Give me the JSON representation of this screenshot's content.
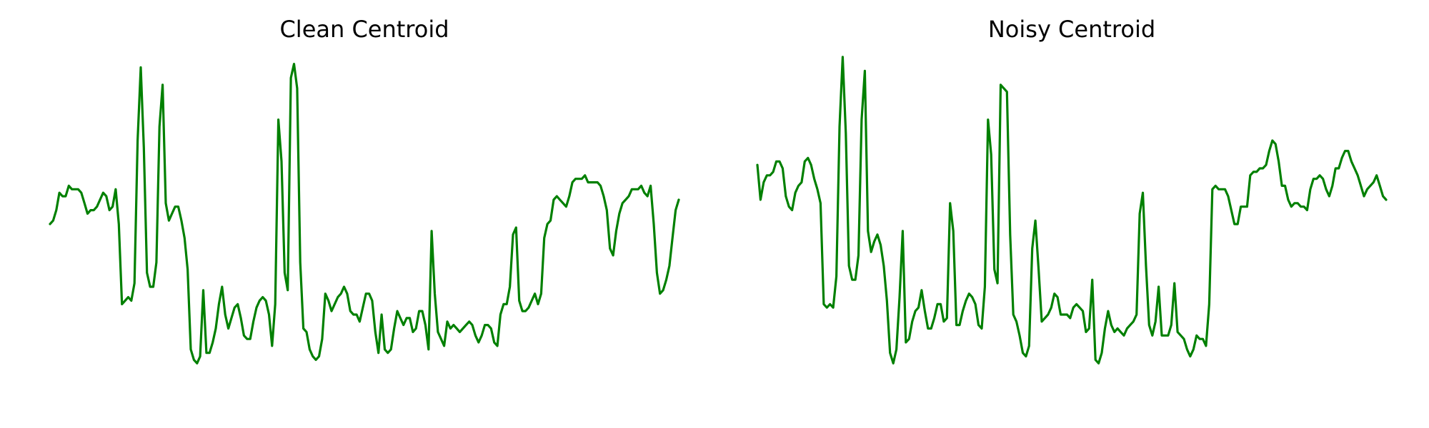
{
  "colors": {
    "line": "#008000",
    "background": "#ffffff"
  },
  "chart_data": [
    {
      "type": "line",
      "title": "Clean Centroid",
      "axes_visible": false,
      "grid": false,
      "ylim": [
        0,
        1
      ],
      "series": [
        {
          "values": [
            0.51,
            0.52,
            0.55,
            0.6,
            0.59,
            0.59,
            0.62,
            0.61,
            0.61,
            0.61,
            0.6,
            0.57,
            0.54,
            0.55,
            0.55,
            0.56,
            0.58,
            0.6,
            0.59,
            0.55,
            0.56,
            0.61,
            0.51,
            0.28,
            0.29,
            0.3,
            0.29,
            0.34,
            0.75,
            0.96,
            0.73,
            0.37,
            0.33,
            0.33,
            0.4,
            0.79,
            0.91,
            0.57,
            0.52,
            0.54,
            0.56,
            0.56,
            0.52,
            0.47,
            0.38,
            0.15,
            0.12,
            0.11,
            0.13,
            0.32,
            0.14,
            0.14,
            0.17,
            0.21,
            0.28,
            0.33,
            0.25,
            0.21,
            0.24,
            0.27,
            0.28,
            0.24,
            0.19,
            0.18,
            0.18,
            0.23,
            0.27,
            0.29,
            0.3,
            0.29,
            0.25,
            0.16,
            0.28,
            0.81,
            0.69,
            0.37,
            0.32,
            0.93,
            0.97,
            0.9,
            0.4,
            0.21,
            0.2,
            0.15,
            0.13,
            0.12,
            0.13,
            0.18,
            0.31,
            0.29,
            0.26,
            0.28,
            0.3,
            0.31,
            0.33,
            0.31,
            0.26,
            0.25,
            0.25,
            0.23,
            0.27,
            0.31,
            0.31,
            0.29,
            0.2,
            0.14,
            0.25,
            0.15,
            0.14,
            0.15,
            0.21,
            0.26,
            0.24,
            0.22,
            0.24,
            0.24,
            0.2,
            0.21,
            0.26,
            0.26,
            0.22,
            0.15,
            0.49,
            0.31,
            0.2,
            0.18,
            0.16,
            0.23,
            0.21,
            0.22,
            0.21,
            0.2,
            0.21,
            0.22,
            0.23,
            0.22,
            0.19,
            0.17,
            0.19,
            0.22,
            0.22,
            0.21,
            0.17,
            0.16,
            0.25,
            0.28,
            0.28,
            0.33,
            0.48,
            0.5,
            0.29,
            0.26,
            0.26,
            0.27,
            0.29,
            0.31,
            0.28,
            0.31,
            0.47,
            0.51,
            0.52,
            0.58,
            0.59,
            0.58,
            0.57,
            0.56,
            0.59,
            0.63,
            0.64,
            0.64,
            0.64,
            0.65,
            0.63,
            0.63,
            0.63,
            0.63,
            0.62,
            0.59,
            0.55,
            0.44,
            0.42,
            0.49,
            0.54,
            0.57,
            0.58,
            0.59,
            0.61,
            0.61,
            0.61,
            0.62,
            0.6,
            0.59,
            0.62,
            0.51,
            0.37,
            0.31,
            0.32,
            0.35,
            0.39,
            0.47,
            0.55,
            0.58
          ]
        }
      ]
    },
    {
      "type": "line",
      "title": "Noisy Centroid",
      "axes_visible": false,
      "grid": false,
      "ylim": [
        0,
        1
      ],
      "series": [
        {
          "values": [
            0.68,
            0.58,
            0.63,
            0.65,
            0.65,
            0.66,
            0.69,
            0.69,
            0.67,
            0.59,
            0.56,
            0.55,
            0.6,
            0.62,
            0.63,
            0.69,
            0.7,
            0.68,
            0.64,
            0.61,
            0.57,
            0.28,
            0.27,
            0.28,
            0.27,
            0.36,
            0.79,
            0.99,
            0.77,
            0.39,
            0.35,
            0.35,
            0.42,
            0.81,
            0.95,
            0.49,
            0.43,
            0.46,
            0.48,
            0.45,
            0.39,
            0.29,
            0.14,
            0.11,
            0.15,
            0.3,
            0.49,
            0.17,
            0.18,
            0.23,
            0.26,
            0.27,
            0.32,
            0.26,
            0.21,
            0.21,
            0.24,
            0.28,
            0.28,
            0.23,
            0.24,
            0.57,
            0.49,
            0.22,
            0.22,
            0.26,
            0.29,
            0.31,
            0.3,
            0.28,
            0.22,
            0.21,
            0.33,
            0.81,
            0.71,
            0.38,
            0.34,
            0.91,
            0.9,
            0.89,
            0.48,
            0.25,
            0.23,
            0.19,
            0.14,
            0.13,
            0.16,
            0.44,
            0.52,
            0.38,
            0.23,
            0.24,
            0.25,
            0.27,
            0.31,
            0.3,
            0.25,
            0.25,
            0.25,
            0.24,
            0.27,
            0.28,
            0.27,
            0.26,
            0.2,
            0.21,
            0.35,
            0.12,
            0.11,
            0.14,
            0.21,
            0.26,
            0.22,
            0.2,
            0.21,
            0.2,
            0.19,
            0.21,
            0.22,
            0.23,
            0.25,
            0.54,
            0.6,
            0.39,
            0.22,
            0.19,
            0.23,
            0.33,
            0.19,
            0.19,
            0.19,
            0.22,
            0.34,
            0.2,
            0.19,
            0.18,
            0.15,
            0.13,
            0.15,
            0.19,
            0.18,
            0.18,
            0.16,
            0.28,
            0.61,
            0.62,
            0.61,
            0.61,
            0.61,
            0.59,
            0.55,
            0.51,
            0.51,
            0.56,
            0.56,
            0.56,
            0.65,
            0.66,
            0.66,
            0.67,
            0.67,
            0.68,
            0.72,
            0.75,
            0.74,
            0.69,
            0.62,
            0.62,
            0.58,
            0.56,
            0.57,
            0.57,
            0.56,
            0.56,
            0.55,
            0.61,
            0.64,
            0.64,
            0.65,
            0.64,
            0.61,
            0.59,
            0.62,
            0.67,
            0.67,
            0.7,
            0.72,
            0.72,
            0.69,
            0.67,
            0.65,
            0.62,
            0.59,
            0.61,
            0.62,
            0.63,
            0.65,
            0.62,
            0.59,
            0.58
          ]
        }
      ]
    }
  ]
}
